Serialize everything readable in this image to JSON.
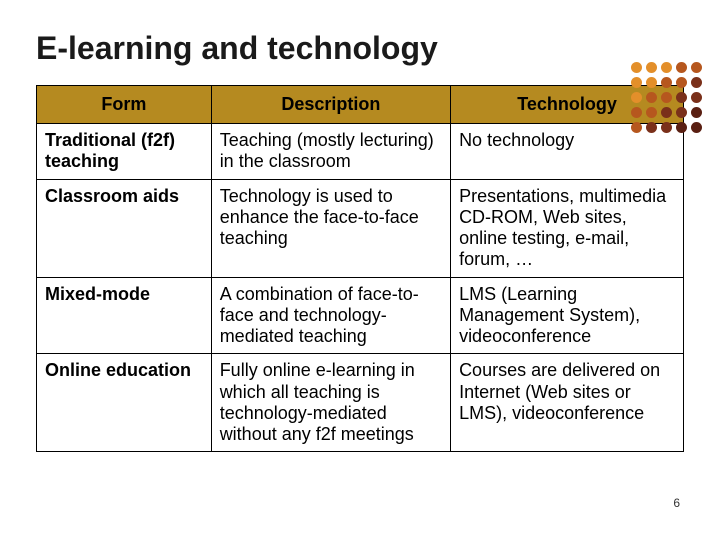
{
  "title": "E-learning and technology",
  "page_number": "6",
  "table": {
    "header_bg": "#b58a20",
    "header_color": "#000000",
    "border_color": "#000000",
    "columns": [
      "Form",
      "Description",
      "Technology"
    ],
    "rows": [
      {
        "form": "Traditional (f2f) teaching",
        "description": "Teaching (mostly lecturing) in the classroom",
        "technology": "No technology"
      },
      {
        "form": "Classroom aids",
        "description": "Technology is used to enhance the face-to-face teaching",
        "technology": "Presentations, multimedia CD-ROM, Web sites, online testing, e-mail, forum, …"
      },
      {
        "form": "Mixed-mode",
        "description": "A combination of face-to-face and technology-mediated teaching",
        "technology": "LMS (Learning Management System), videoconference"
      },
      {
        "form": "Online education",
        "description": "Fully online e-learning in which all teaching is technology-mediated without any f2f meetings",
        "technology": "Courses are delivered on Internet (Web sites or LMS), videoconference"
      }
    ]
  },
  "decor": {
    "dot_colors": [
      "#e38f2a",
      "#e38f2a",
      "#e38f2a",
      "#b6571e",
      "#b6571e",
      "#e38f2a",
      "#e38f2a",
      "#b6571e",
      "#b6571e",
      "#7a301a",
      "#e38f2a",
      "#b6571e",
      "#b6571e",
      "#7a301a",
      "#7a301a",
      "#b6571e",
      "#b6571e",
      "#7a301a",
      "#7a301a",
      "#5a1f12",
      "#b6571e",
      "#7a301a",
      "#7a301a",
      "#5a1f12",
      "#5a1f12"
    ]
  }
}
